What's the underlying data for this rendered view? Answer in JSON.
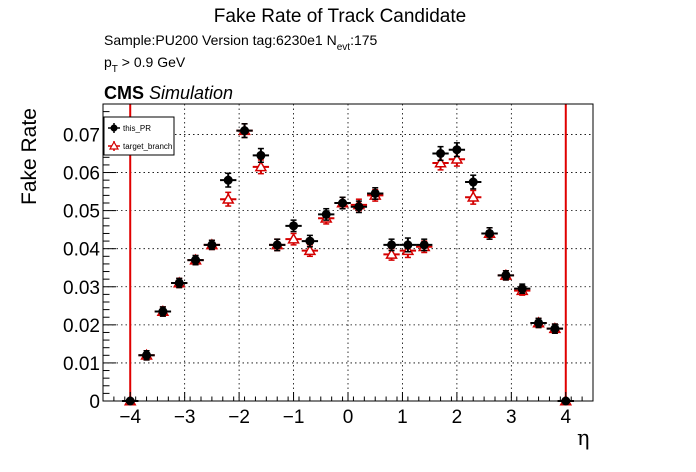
{
  "header": {
    "title": "Fake Rate of Track Candidate",
    "sample_prefix": "Sample:PU200   Version tag:6230e1  N",
    "sample_sub": "evt",
    "sample_suffix": ":175",
    "cut_main": "p",
    "cut_sub": "T",
    "cut_suffix": " > 0.9 GeV",
    "cms_bold": "CMS",
    "cms_italic": "Simulation"
  },
  "chart_data": {
    "type": "scatter",
    "title": "Fake Rate of Track Candidate",
    "xlabel": "η",
    "ylabel": "Fake Rate",
    "xlim": [
      -4.5,
      4.5
    ],
    "ylim": [
      0,
      0.078
    ],
    "grid": true,
    "legend_position": "top-left",
    "x_ticks": [
      -4,
      -3,
      -2,
      -1,
      0,
      1,
      2,
      3,
      4
    ],
    "x_tick_labels": [
      "−4",
      "−3",
      "−2",
      "−1",
      "0",
      "1",
      "2",
      "3",
      "4"
    ],
    "y_ticks": [
      0,
      0.01,
      0.02,
      0.03,
      0.04,
      0.05,
      0.06,
      0.07
    ],
    "y_tick_labels": [
      "0",
      "0.01",
      "0.02",
      "0.03",
      "0.04",
      "0.05",
      "0.06",
      "0.07"
    ],
    "x_error": 0.15,
    "vertical_lines": [
      -4,
      4
    ],
    "series": [
      {
        "name": "this_PR",
        "color": "#000000",
        "marker": "filled-circle",
        "x": [
          -4.0,
          -3.7,
          -3.4,
          -3.1,
          -2.8,
          -2.5,
          -2.2,
          -1.9,
          -1.6,
          -1.3,
          -1.0,
          -0.7,
          -0.4,
          -0.1,
          0.2,
          0.5,
          0.8,
          1.1,
          1.4,
          1.7,
          2.0,
          2.3,
          2.6,
          2.9,
          3.2,
          3.5,
          3.8,
          4.0
        ],
        "y": [
          0.0,
          0.012,
          0.0235,
          0.031,
          0.037,
          0.041,
          0.058,
          0.071,
          0.0645,
          0.041,
          0.046,
          0.042,
          0.049,
          0.052,
          0.051,
          0.0545,
          0.041,
          0.041,
          0.041,
          0.065,
          0.066,
          0.0575,
          0.044,
          0.033,
          0.0295,
          0.0205,
          0.019,
          0.0
        ],
        "yerr": [
          0.0,
          0.0012,
          0.0012,
          0.0012,
          0.0012,
          0.0012,
          0.0018,
          0.0018,
          0.0018,
          0.0015,
          0.0015,
          0.0015,
          0.0015,
          0.0015,
          0.0015,
          0.0015,
          0.0015,
          0.0018,
          0.0015,
          0.0018,
          0.0018,
          0.0018,
          0.0015,
          0.0012,
          0.0012,
          0.0012,
          0.0012,
          0.0
        ]
      },
      {
        "name": "target_branch",
        "color": "#d40000",
        "marker": "open-triangle",
        "x": [
          -4.0,
          -3.7,
          -3.4,
          -3.1,
          -2.8,
          -2.5,
          -2.2,
          -1.9,
          -1.6,
          -1.3,
          -1.0,
          -0.7,
          -0.4,
          -0.1,
          0.2,
          0.5,
          0.8,
          1.1,
          1.4,
          1.7,
          2.0,
          2.3,
          2.6,
          2.9,
          3.2,
          3.5,
          3.8,
          4.0
        ],
        "y": [
          0.0,
          0.012,
          0.0235,
          0.031,
          0.037,
          0.041,
          0.053,
          0.071,
          0.0615,
          0.041,
          0.0425,
          0.0395,
          0.048,
          0.052,
          0.0515,
          0.054,
          0.0385,
          0.0395,
          0.0405,
          0.0625,
          0.0635,
          0.0535,
          0.044,
          0.033,
          0.029,
          0.0205,
          0.019,
          0.0
        ],
        "yerr": [
          0.0,
          0.0012,
          0.0012,
          0.0012,
          0.0012,
          0.0012,
          0.0018,
          0.0018,
          0.0018,
          0.0015,
          0.0015,
          0.0015,
          0.0015,
          0.0015,
          0.0015,
          0.0015,
          0.0015,
          0.0018,
          0.0015,
          0.0018,
          0.0018,
          0.0018,
          0.0015,
          0.0012,
          0.0012,
          0.0012,
          0.0012,
          0.0
        ]
      }
    ]
  }
}
